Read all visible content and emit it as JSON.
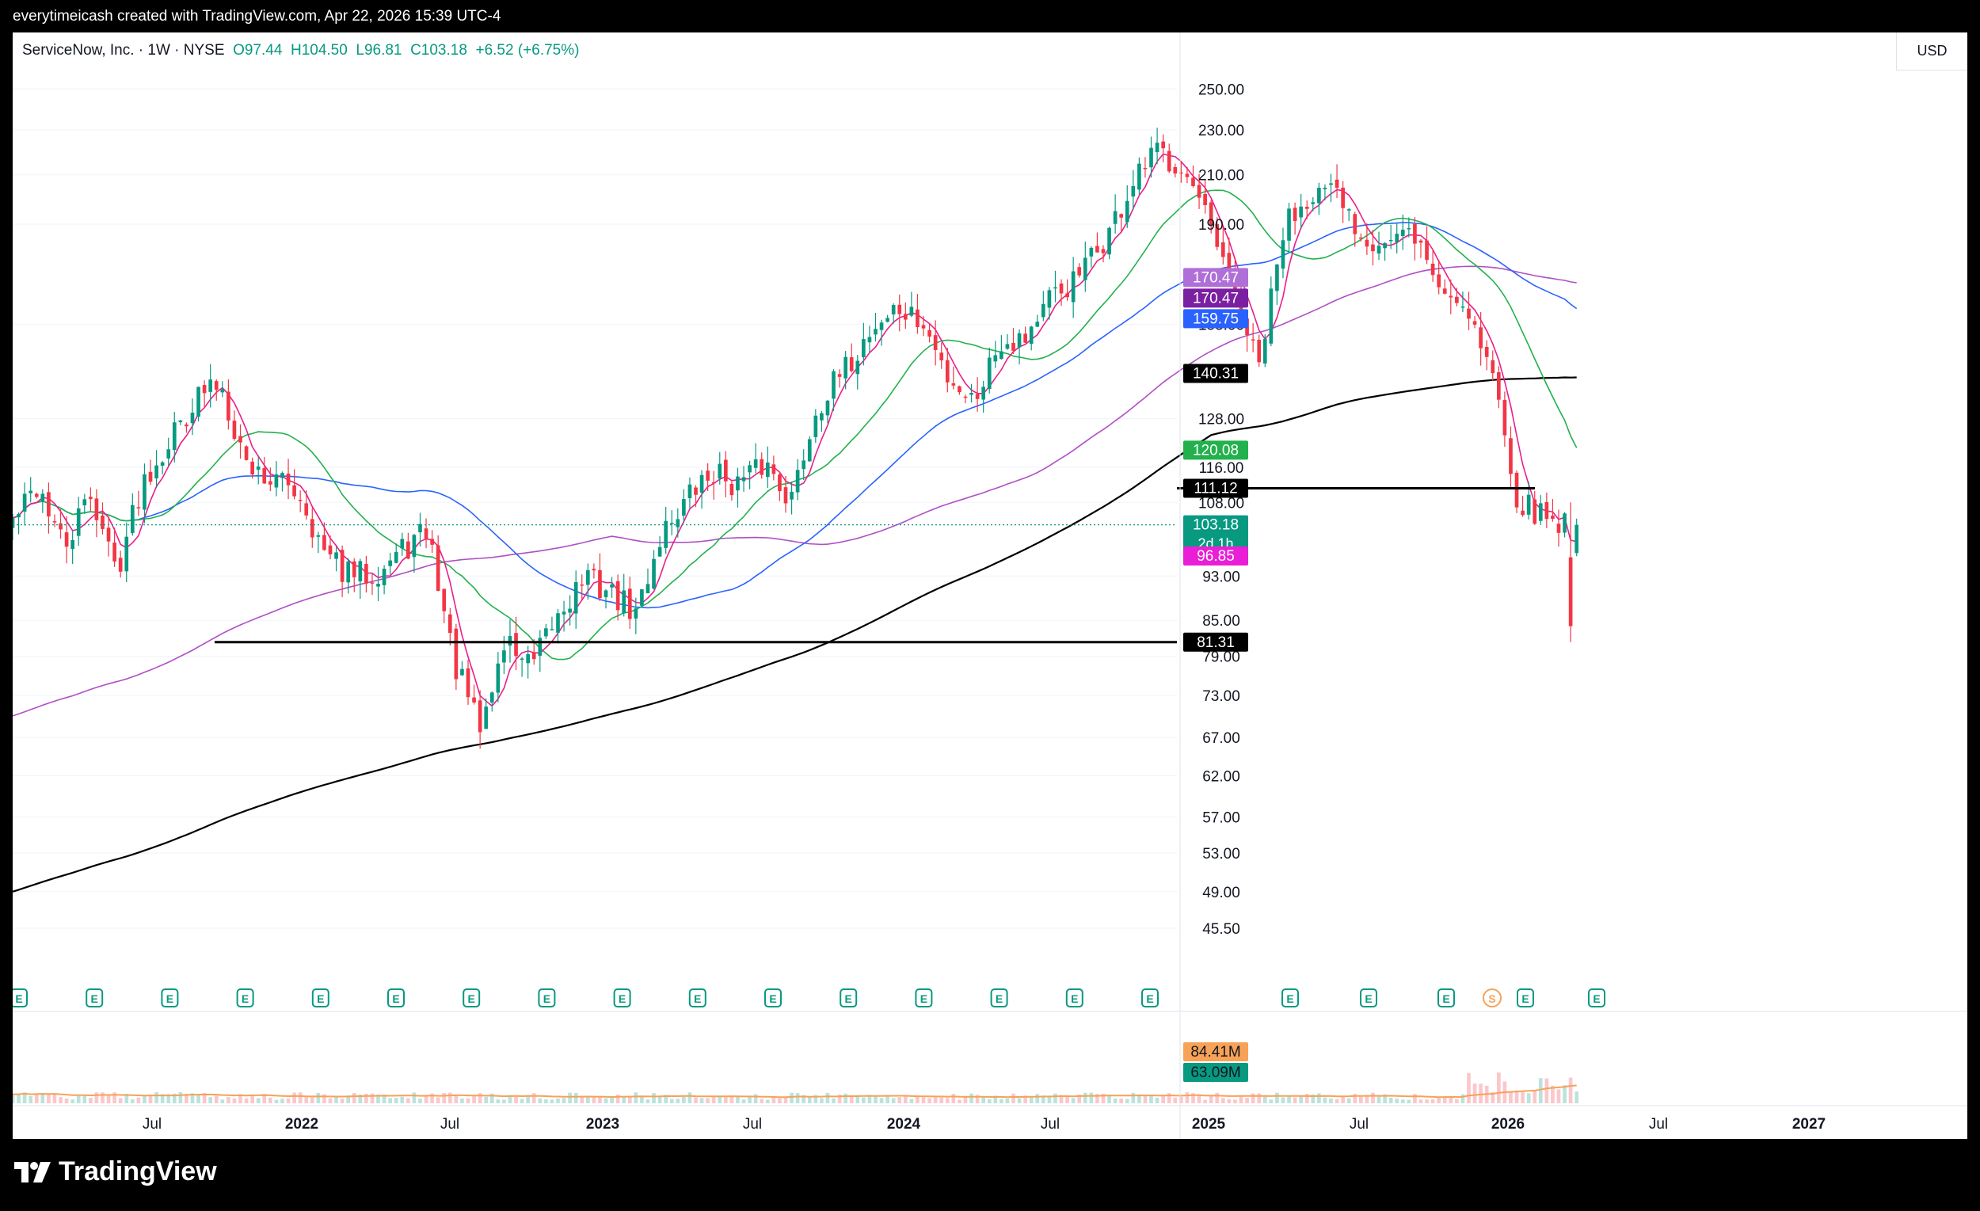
{
  "header": {
    "credit": "everytimeicash created with TradingView.com, Apr 22, 2026 15:39 UTC-4"
  },
  "legend": {
    "symbol": "ServiceNow, Inc. · 1W · NYSE",
    "open": "O97.44",
    "high": "H104.50",
    "low": "L96.81",
    "close": "C103.18",
    "change": "+6.52 (+6.75%)"
  },
  "currency": "USD",
  "footer": {
    "brand": "TradingView"
  },
  "colors": {
    "up": "#089981",
    "down": "#f23645",
    "ma_pink": "#e91e8c",
    "ma_green": "#22b14c",
    "ma_blue": "#2962ff",
    "ma_purple": "#b04fc6",
    "ma_black": "#000000"
  },
  "chart_data": {
    "type": "candlestick",
    "title": "ServiceNow, Inc. · 1W · NYSE",
    "scale": "log",
    "ylim": [
      43,
      275
    ],
    "x_axis_labels": [
      "Jul",
      "2022",
      "Jul",
      "2023",
      "Jul",
      "2024",
      "Jul",
      "2025",
      "Jul",
      "2026",
      "Jul",
      "2027"
    ],
    "y_axis_ticks": [
      45.5,
      49.0,
      53.0,
      57.0,
      62.0,
      67.0,
      73.0,
      79.0,
      85.0,
      93.0,
      108.0,
      116.0,
      128.0,
      155.0,
      190.0,
      210.0,
      230.0,
      250.0
    ],
    "price_path": [
      {
        "date": "2021-04",
        "price": 104
      },
      {
        "date": "2021-05",
        "price": 112
      },
      {
        "date": "2021-06",
        "price": 98
      },
      {
        "date": "2021-07",
        "price": 110
      },
      {
        "date": "2021-08",
        "price": 94
      },
      {
        "date": "2021-09",
        "price": 113
      },
      {
        "date": "2021-11",
        "price": 133
      },
      {
        "date": "2021-12",
        "price": 138
      },
      {
        "date": "2022-01",
        "price": 117
      },
      {
        "date": "2022-02",
        "price": 113
      },
      {
        "date": "2022-03",
        "price": 111
      },
      {
        "date": "2022-04",
        "price": 97
      },
      {
        "date": "2022-05",
        "price": 93
      },
      {
        "date": "2022-06",
        "price": 94
      },
      {
        "date": "2022-08",
        "price": 102
      },
      {
        "date": "2022-09",
        "price": 78
      },
      {
        "date": "2022-10",
        "price": 68
      },
      {
        "date": "2022-11",
        "price": 82
      },
      {
        "date": "2022-12",
        "price": 77
      },
      {
        "date": "2023-01",
        "price": 86
      },
      {
        "date": "2023-02",
        "price": 93
      },
      {
        "date": "2023-03",
        "price": 90
      },
      {
        "date": "2023-04",
        "price": 86
      },
      {
        "date": "2023-05",
        "price": 102
      },
      {
        "date": "2023-06",
        "price": 109
      },
      {
        "date": "2023-07",
        "price": 115
      },
      {
        "date": "2023-08",
        "price": 112
      },
      {
        "date": "2023-09",
        "price": 117
      },
      {
        "date": "2023-10",
        "price": 109
      },
      {
        "date": "2023-11",
        "price": 132
      },
      {
        "date": "2023-12",
        "price": 140
      },
      {
        "date": "2024-01",
        "price": 153
      },
      {
        "date": "2024-02",
        "price": 160
      },
      {
        "date": "2024-03",
        "price": 155
      },
      {
        "date": "2024-04",
        "price": 140
      },
      {
        "date": "2024-05",
        "price": 133
      },
      {
        "date": "2024-06",
        "price": 150
      },
      {
        "date": "2024-07",
        "price": 152
      },
      {
        "date": "2024-08",
        "price": 163
      },
      {
        "date": "2024-09",
        "price": 170
      },
      {
        "date": "2024-10",
        "price": 183
      },
      {
        "date": "2024-11",
        "price": 202
      },
      {
        "date": "2024-12",
        "price": 220
      },
      {
        "date": "2025-01",
        "price": 215
      },
      {
        "date": "2025-02",
        "price": 190
      },
      {
        "date": "2025-03",
        "price": 165
      },
      {
        "date": "2025-04",
        "price": 142
      },
      {
        "date": "2025-05",
        "price": 190
      },
      {
        "date": "2025-06",
        "price": 204
      },
      {
        "date": "2025-07",
        "price": 200
      },
      {
        "date": "2025-08",
        "price": 186
      },
      {
        "date": "2025-09",
        "price": 183
      },
      {
        "date": "2025-10",
        "price": 186
      },
      {
        "date": "2025-11",
        "price": 166
      },
      {
        "date": "2025-12",
        "price": 162
      },
      {
        "date": "2026-01",
        "price": 140
      },
      {
        "date": "2026-02",
        "price": 108
      },
      {
        "date": "2026-03",
        "price": 105
      },
      {
        "date": "2026-04",
        "price": 103.18
      }
    ],
    "series": [
      {
        "name": "MA (pink)",
        "last": 96.85
      },
      {
        "name": "MA (green)",
        "last": 120.08
      },
      {
        "name": "MA (blue)",
        "last": 159.75
      },
      {
        "name": "MA (purple)",
        "last": 170.47
      },
      {
        "name": "MA (black)",
        "last": 140.31
      }
    ],
    "horizontal_lines": [
      111.12,
      81.31
    ],
    "price_labels": [
      {
        "text": "170.47",
        "value": 170.47,
        "bg": "#b06fd8"
      },
      {
        "text": "170.47",
        "value": 170.47,
        "bg": "#7b1fa2"
      },
      {
        "text": "159.75",
        "value": 159.75,
        "bg": "#2962ff"
      },
      {
        "text": "140.31",
        "value": 140.31,
        "bg": "#000000"
      },
      {
        "text": "120.08",
        "value": 120.08,
        "bg": "#22b14c"
      },
      {
        "text": "111.12",
        "value": 111.12,
        "bg": "#000000"
      },
      {
        "text": "103.18",
        "value": 103.18,
        "bg": "#089981",
        "sub": "2d 1h"
      },
      {
        "text": "96.85",
        "value": 96.85,
        "bg": "#e91ed6"
      },
      {
        "text": "81.31",
        "value": 81.31,
        "bg": "#000000"
      }
    ],
    "volume": {
      "labels": [
        {
          "text": "84.41M",
          "bg": "#f7a257"
        },
        {
          "text": "63.09M",
          "bg": "#089981"
        }
      ]
    },
    "earnings_markers": [
      "E",
      "E",
      "E",
      "E",
      "E",
      "E",
      "E",
      "E",
      "E",
      "E",
      "E",
      "E",
      "E",
      "E",
      "E",
      "E",
      "E",
      "E",
      "E",
      "S",
      "E",
      "E"
    ]
  }
}
